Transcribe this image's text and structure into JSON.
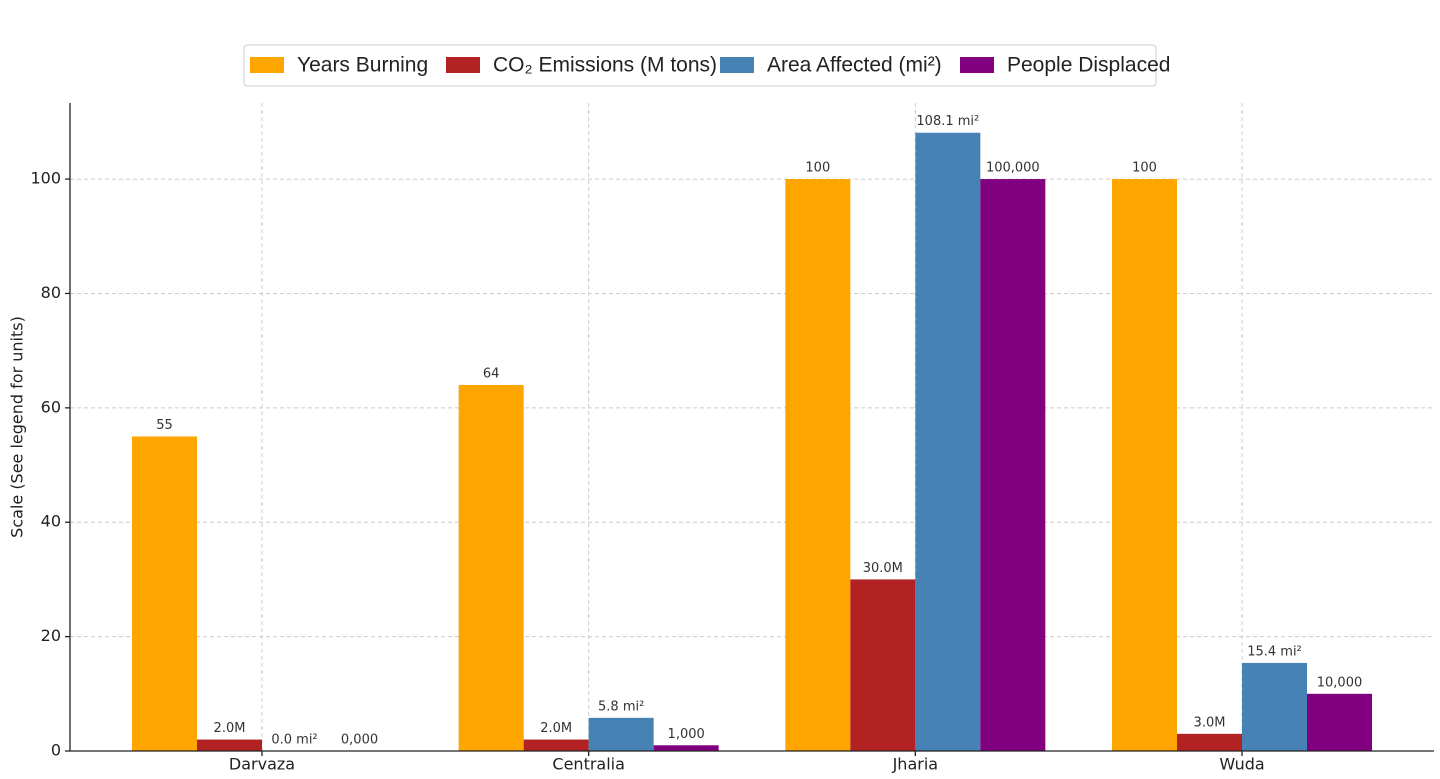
{
  "chart_data": {
    "type": "bar",
    "ylabel": "Scale (See legend for units)",
    "categories": [
      "Darvaza",
      "Centralia",
      "Jharia",
      "Wuda"
    ],
    "series": [
      {
        "name": "Years Burning",
        "color": "#ffa500",
        "values": [
          55,
          64,
          100,
          100
        ]
      },
      {
        "name": "CO₂ Emissions (M tons)",
        "color": "#b22222",
        "values": [
          2,
          2,
          30,
          3
        ],
        "value_labels": [
          "2.0M",
          "2.0M",
          "30.0M",
          "3.0M"
        ]
      },
      {
        "name": "Area Affected (mi²)",
        "color": "#4682b4",
        "values": [
          0,
          5.8,
          108.1,
          15.4
        ],
        "value_labels": [
          "0.0 mi²",
          "5.8 mi²",
          "108.1 mi²",
          "15.4 mi²"
        ]
      },
      {
        "name": "People Displaced",
        "color": "#800080",
        "values": [
          0,
          1,
          100,
          10
        ],
        "value_labels": [
          "0,000",
          "1,000",
          "100,000",
          "10,000"
        ]
      }
    ],
    "ylim": [
      0,
      113.3
    ],
    "yticks": [
      0,
      20,
      40,
      60,
      80,
      100
    ],
    "grid": true,
    "legend": "top"
  }
}
